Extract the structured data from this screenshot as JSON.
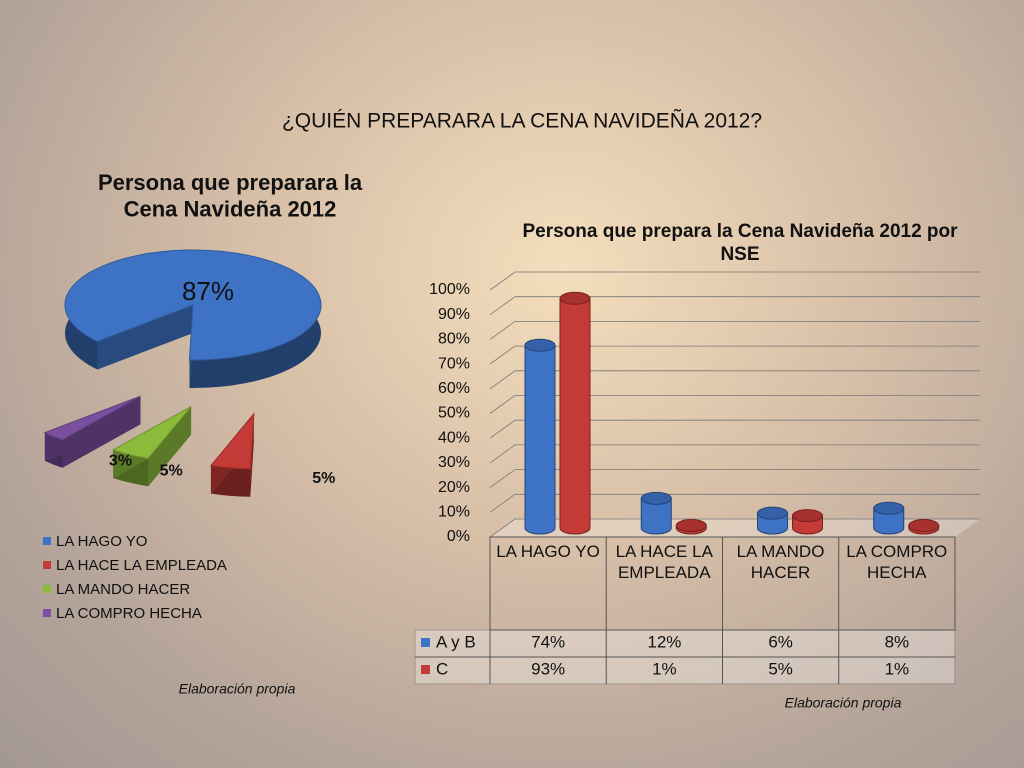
{
  "slide_title": "¿QUIÉN PREPARARA LA CENA NAVIDEÑA 2012?",
  "chart_data": [
    {
      "type": "pie",
      "title": "Persona que preparara la Cena Navideña 2012",
      "categories": [
        "LA HAGO YO",
        "LA HACE LA EMPLEADA",
        "LA MANDO HACER",
        "LA COMPRO HECHA"
      ],
      "values": [
        87,
        5,
        5,
        3
      ],
      "value_labels": [
        "87%",
        "5%",
        "5%",
        "3%"
      ],
      "colors": [
        "#3d72c4",
        "#c43a36",
        "#8cbb3c",
        "#7a4f9f"
      ],
      "note": "Elaboración propia"
    },
    {
      "type": "bar",
      "title": "Persona que prepara la Cena Navideña 2012 por NSE",
      "categories": [
        "LA HAGO YO",
        "LA HACE LA EMPLEADA",
        "LA MANDO HACER",
        "LA COMPRO HECHA"
      ],
      "series": [
        {
          "name": "A y B",
          "color": "#3d72c4",
          "values": [
            74,
            12,
            6,
            8
          ],
          "value_labels": [
            "74%",
            "12%",
            "6%",
            "8%"
          ]
        },
        {
          "name": "C",
          "color": "#c43a36",
          "values": [
            93,
            1,
            5,
            1
          ],
          "value_labels": [
            "93%",
            "1%",
            "5%",
            "1%"
          ]
        }
      ],
      "ylim": [
        0,
        100
      ],
      "yticks": [
        {
          "value": 0,
          "label": "0%"
        },
        {
          "value": 10,
          "label": "10%"
        },
        {
          "value": 20,
          "label": "20%"
        },
        {
          "value": 30,
          "label": "30%"
        },
        {
          "value": 40,
          "label": "40%"
        },
        {
          "value": 50,
          "label": "50%"
        },
        {
          "value": 60,
          "label": "60%"
        },
        {
          "value": 70,
          "label": "70%"
        },
        {
          "value": 80,
          "label": "80%"
        },
        {
          "value": 90,
          "label": "90%"
        },
        {
          "value": 100,
          "label": "100%"
        }
      ],
      "grid": true,
      "note": "Elaboración propia"
    }
  ]
}
